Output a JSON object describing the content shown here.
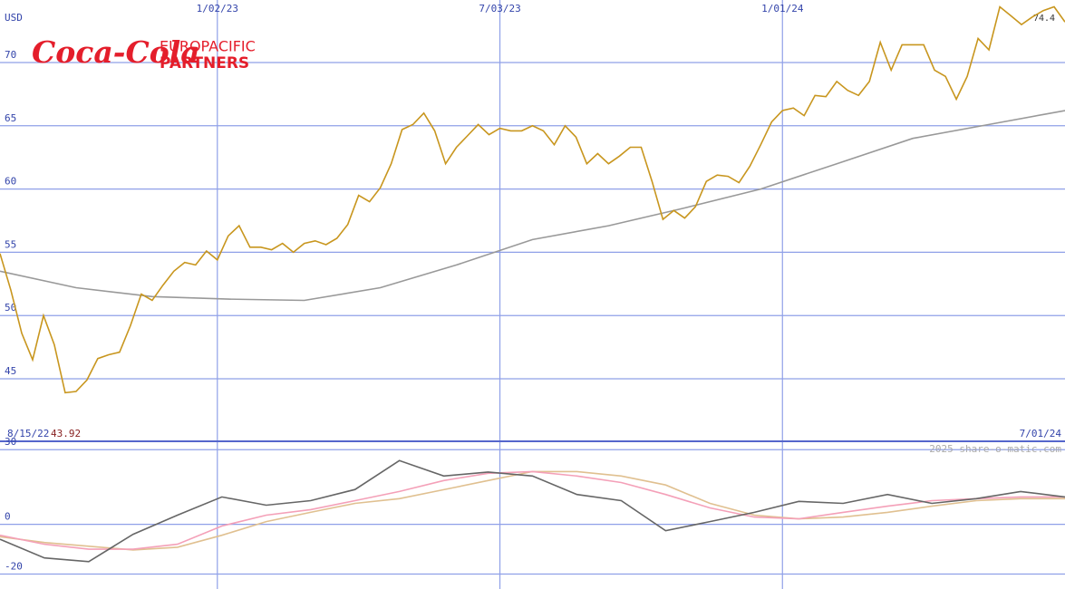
{
  "logo": {
    "script": "Coca-Cola",
    "line1": "EUROPACIFIC",
    "line2": "PARTNERS"
  },
  "chart_data": [
    {
      "type": "line",
      "y_unit": "USD",
      "xlim": [
        "8/15/22",
        "7/01/24"
      ],
      "xticks": [
        "1/02/23",
        "7/03/23",
        "1/01/24"
      ],
      "ylim": [
        40.06,
        74.94
      ],
      "yticks": [
        45,
        50,
        55,
        60,
        65,
        70
      ],
      "grid": true,
      "start_label": "8/15/22",
      "low_value": 43.92,
      "end_label": "7/01/24",
      "high_value": 74.4,
      "credit": "2025 share-o-matic.com",
      "series": [
        {
          "color": "#c8961e",
          "values": [
            54.9,
            52.0,
            48.6,
            46.5,
            50.0,
            47.7,
            43.9,
            44.0,
            44.9,
            46.6,
            46.9,
            47.1,
            49.2,
            51.7,
            51.2,
            52.4,
            53.5,
            54.2,
            54.0,
            55.1,
            54.4,
            56.3,
            57.1,
            55.4,
            55.4,
            55.2,
            55.7,
            55.0,
            55.7,
            55.9,
            55.6,
            56.1,
            57.2,
            59.5,
            59.0,
            60.1,
            62.0,
            64.7,
            65.1,
            66.0,
            64.6,
            62.0,
            63.3,
            64.2,
            65.1,
            64.3,
            64.8,
            64.6,
            64.6,
            65.0,
            64.6,
            63.5,
            65.0,
            64.1,
            62.0,
            62.8,
            62.0,
            62.6,
            63.3,
            63.3,
            60.6,
            57.6,
            58.3,
            57.7,
            58.6,
            60.6,
            61.1,
            61.0,
            60.5,
            61.8,
            63.5,
            65.3,
            66.2,
            66.4,
            65.8,
            67.4,
            67.3,
            68.5,
            67.8,
            67.4,
            68.5,
            71.6,
            69.4,
            71.4,
            71.4,
            71.4,
            69.4,
            68.9,
            67.1,
            68.9,
            71.9,
            71.0,
            74.4,
            73.7,
            73.0,
            73.6,
            74.1,
            74.4,
            73.2
          ]
        },
        {
          "color": "#999999",
          "values": [
            53.5,
            52.2,
            51.5,
            51.3,
            51.2,
            52.2,
            54.0,
            56.0,
            57.1,
            58.5,
            60.0,
            62.0,
            64.0,
            65.1,
            66.2
          ]
        }
      ]
    },
    {
      "type": "line",
      "ylim": [
        -26,
        33
      ],
      "yticks": [
        30,
        0,
        -20
      ],
      "grid": true,
      "series": [
        {
          "color": "#666666",
          "values": [
            -6,
            -13.5,
            -15,
            -4,
            3.7,
            11,
            7.7,
            9.5,
            14,
            25.6,
            19.4,
            21,
            19.4,
            12,
            9.5,
            -2.6,
            1.1,
            4.8,
            9.2,
            8.4,
            12,
            8.4,
            10.3,
            13.2,
            11
          ]
        },
        {
          "color": "#f4a0b8",
          "values": [
            -4.4,
            -8,
            -10,
            -10,
            -8,
            -0.7,
            3.7,
            5.9,
            9.5,
            13.2,
            17.6,
            20.5,
            21.2,
            19.4,
            16.8,
            12,
            6.6,
            2.9,
            2.2,
            4.8,
            7.3,
            9.5,
            10.3,
            11,
            11
          ]
        },
        {
          "color": "#e0c090",
          "values": [
            -5,
            -7.3,
            -8.8,
            -10.3,
            -9.2,
            -4.4,
            1.1,
            4.8,
            8.4,
            10.3,
            13.9,
            17.6,
            21.2,
            21.2,
            19.4,
            15.8,
            8.4,
            3.7,
            2.2,
            2.9,
            4.8,
            7.3,
            9.5,
            10.3,
            10.3
          ]
        }
      ]
    }
  ]
}
